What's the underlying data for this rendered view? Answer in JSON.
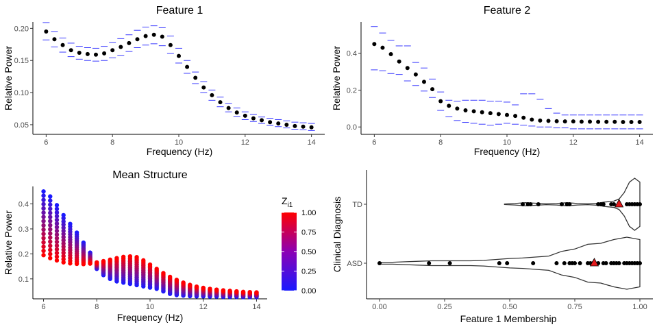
{
  "colors": {
    "dot": "#000000",
    "ci": "#3a3aff",
    "low": "#1a1aff",
    "high": "#ff0000",
    "violin": "#333333",
    "triangle": "#e31a1c"
  },
  "chart_data": [
    {
      "id": "p1",
      "type": "scatter",
      "title": "Feature 1",
      "xlabel": "Frequency (Hz)",
      "ylabel": "Relative Power",
      "xlim": [
        5.6,
        14.4
      ],
      "ylim": [
        0.035,
        0.21
      ],
      "xticks": [
        6,
        8,
        10,
        12,
        14
      ],
      "xtick_labels": [
        "6",
        "8",
        "10",
        "12",
        "14"
      ],
      "yticks": [
        0.05,
        0.1,
        0.15,
        0.2
      ],
      "ytick_labels": [
        "0.05",
        "0.10",
        "0.15",
        "0.20"
      ],
      "x": [
        6.0,
        6.25,
        6.5,
        6.75,
        7.0,
        7.25,
        7.5,
        7.75,
        8.0,
        8.25,
        8.5,
        8.75,
        9.0,
        9.25,
        9.5,
        9.75,
        10.0,
        10.25,
        10.5,
        10.75,
        11.0,
        11.25,
        11.5,
        11.75,
        12.0,
        12.25,
        12.5,
        12.75,
        13.0,
        13.25,
        13.5,
        13.75,
        14.0
      ],
      "y": [
        0.195,
        0.183,
        0.174,
        0.166,
        0.162,
        0.16,
        0.159,
        0.161,
        0.166,
        0.171,
        0.177,
        0.183,
        0.188,
        0.19,
        0.187,
        0.174,
        0.157,
        0.14,
        0.123,
        0.108,
        0.096,
        0.085,
        0.076,
        0.069,
        0.064,
        0.06,
        0.057,
        0.054,
        0.052,
        0.05,
        0.048,
        0.047,
        0.046
      ],
      "lower": [
        0.182,
        0.171,
        0.163,
        0.156,
        0.152,
        0.15,
        0.149,
        0.15,
        0.154,
        0.158,
        0.164,
        0.17,
        0.174,
        0.176,
        0.173,
        0.161,
        0.146,
        0.13,
        0.114,
        0.1,
        0.088,
        0.078,
        0.07,
        0.063,
        0.058,
        0.055,
        0.052,
        0.049,
        0.047,
        0.045,
        0.043,
        0.042,
        0.041
      ],
      "upper": [
        0.209,
        0.195,
        0.185,
        0.177,
        0.172,
        0.17,
        0.169,
        0.172,
        0.178,
        0.184,
        0.19,
        0.197,
        0.202,
        0.204,
        0.201,
        0.188,
        0.169,
        0.15,
        0.132,
        0.117,
        0.104,
        0.093,
        0.083,
        0.076,
        0.07,
        0.066,
        0.062,
        0.06,
        0.058,
        0.056,
        0.054,
        0.053,
        0.052
      ]
    },
    {
      "id": "p2",
      "type": "scatter",
      "title": "Feature 2",
      "xlabel": "Frequency (Hz)",
      "ylabel": "Relative Power",
      "xlim": [
        5.6,
        14.4
      ],
      "ylim": [
        -0.04,
        0.57
      ],
      "xticks": [
        6,
        8,
        10,
        12,
        14
      ],
      "xtick_labels": [
        "6",
        "8",
        "10",
        "12",
        "14"
      ],
      "yticks": [
        0.0,
        0.2,
        0.4
      ],
      "ytick_labels": [
        "0.0",
        "0.2",
        "0.4"
      ],
      "x": [
        6.0,
        6.25,
        6.5,
        6.75,
        7.0,
        7.25,
        7.5,
        7.75,
        8.0,
        8.25,
        8.5,
        8.75,
        9.0,
        9.25,
        9.5,
        9.75,
        10.0,
        10.25,
        10.5,
        10.75,
        11.0,
        11.25,
        11.5,
        11.75,
        12.0,
        12.25,
        12.5,
        12.75,
        13.0,
        13.25,
        13.5,
        13.75,
        14.0
      ],
      "y": [
        0.45,
        0.43,
        0.395,
        0.355,
        0.32,
        0.285,
        0.245,
        0.205,
        0.14,
        0.115,
        0.1,
        0.09,
        0.085,
        0.08,
        0.075,
        0.07,
        0.065,
        0.06,
        0.05,
        0.04,
        0.035,
        0.033,
        0.031,
        0.03,
        0.03,
        0.029,
        0.029,
        0.028,
        0.028,
        0.028,
        0.027,
        0.027,
        0.027
      ],
      "lower": [
        0.31,
        0.305,
        0.29,
        0.285,
        0.25,
        0.225,
        0.195,
        0.16,
        0.09,
        0.055,
        0.035,
        0.025,
        0.02,
        0.015,
        0.01,
        0.015,
        0.02,
        0.015,
        0.01,
        0.005,
        0.0,
        0.0,
        -0.005,
        -0.005,
        -0.01,
        -0.01,
        -0.01,
        -0.01,
        -0.01,
        -0.01,
        -0.01,
        -0.01,
        -0.01
      ],
      "upper": [
        0.545,
        0.51,
        0.47,
        0.44,
        0.44,
        0.35,
        0.32,
        0.26,
        0.19,
        0.145,
        0.14,
        0.145,
        0.145,
        0.145,
        0.14,
        0.14,
        0.135,
        0.12,
        0.18,
        0.18,
        0.15,
        0.1,
        0.075,
        0.065,
        0.065,
        0.065,
        0.065,
        0.065,
        0.065,
        0.065,
        0.065,
        0.065,
        0.065
      ]
    },
    {
      "id": "p3",
      "type": "scatter",
      "title": "Mean Structure",
      "xlabel": "Frequency (Hz)",
      "ylabel": "Relative Power",
      "xlim": [
        5.6,
        14.4
      ],
      "ylim": [
        0.02,
        0.47
      ],
      "xticks": [
        6,
        8,
        10,
        12,
        14
      ],
      "xtick_labels": [
        "6",
        "8",
        "10",
        "12",
        "14"
      ],
      "yticks": [
        0.1,
        0.2,
        0.3,
        0.4
      ],
      "ytick_labels": [
        "0.1",
        "0.2",
        "0.3",
        "0.4"
      ],
      "x": [
        6.0,
        6.25,
        6.5,
        6.75,
        7.0,
        7.25,
        7.5,
        7.75,
        8.0,
        8.25,
        8.5,
        8.75,
        9.0,
        9.25,
        9.5,
        9.75,
        10.0,
        10.25,
        10.5,
        10.75,
        11.0,
        11.25,
        11.5,
        11.75,
        12.0,
        12.25,
        12.5,
        12.75,
        13.0,
        13.25,
        13.5,
        13.75,
        14.0
      ],
      "low_end": [
        0.45,
        0.43,
        0.395,
        0.355,
        0.32,
        0.285,
        0.245,
        0.205,
        0.14,
        0.115,
        0.1,
        0.09,
        0.085,
        0.08,
        0.075,
        0.07,
        0.065,
        0.06,
        0.05,
        0.04,
        0.035,
        0.033,
        0.031,
        0.03,
        0.03,
        0.029,
        0.029,
        0.028,
        0.028,
        0.028,
        0.027,
        0.027,
        0.027
      ],
      "high_end": [
        0.195,
        0.183,
        0.174,
        0.166,
        0.162,
        0.16,
        0.159,
        0.161,
        0.166,
        0.171,
        0.177,
        0.183,
        0.188,
        0.19,
        0.187,
        0.174,
        0.157,
        0.14,
        0.123,
        0.108,
        0.096,
        0.085,
        0.076,
        0.069,
        0.064,
        0.06,
        0.057,
        0.054,
        0.052,
        0.05,
        0.048,
        0.047,
        0.046
      ],
      "legend": {
        "title": "Z",
        "title_sub": "i1",
        "ticks": [
          0.0,
          0.25,
          0.5,
          0.75,
          1.0
        ],
        "tick_labels": [
          "0.00",
          "0.25",
          "0.50",
          "0.75",
          "1.00"
        ]
      }
    },
    {
      "id": "p4",
      "type": "violin",
      "title": "",
      "xlabel": "Feature 1 Membership",
      "ylabel": "Clinical Diagnosis",
      "xlim": [
        -0.05,
        1.05
      ],
      "xticks": [
        0.0,
        0.25,
        0.5,
        0.75,
        1.0
      ],
      "xtick_labels": [
        "0.00",
        "0.25",
        "0.50",
        "0.75",
        "1.00"
      ],
      "categories": [
        "ASD",
        "TD"
      ],
      "groups": [
        {
          "name": "ASD",
          "mean": 0.825,
          "points": [
            0.0,
            0.19,
            0.27,
            0.46,
            0.49,
            0.59,
            0.68,
            0.71,
            0.73,
            0.74,
            0.75,
            0.77,
            0.8,
            0.81,
            0.82,
            0.84,
            0.86,
            0.87,
            0.89,
            0.9,
            0.91,
            0.92,
            0.94,
            0.95,
            0.96,
            0.97,
            0.98,
            0.99,
            1.0
          ],
          "density": {
            "x": [
              0.0,
              0.05,
              0.1,
              0.15,
              0.2,
              0.25,
              0.3,
              0.35,
              0.4,
              0.45,
              0.5,
              0.55,
              0.6,
              0.65,
              0.7,
              0.75,
              0.8,
              0.85,
              0.9,
              0.95,
              1.0
            ],
            "w": [
              0.02,
              0.02,
              0.03,
              0.04,
              0.05,
              0.05,
              0.05,
              0.05,
              0.06,
              0.08,
              0.1,
              0.11,
              0.13,
              0.15,
              0.25,
              0.3,
              0.4,
              0.42,
              0.5,
              0.55,
              0.5
            ]
          }
        },
        {
          "name": "TD",
          "mean": 0.92,
          "points": [
            0.55,
            0.57,
            0.58,
            0.61,
            0.7,
            0.72,
            0.73,
            0.84,
            0.85,
            0.86,
            0.89,
            0.9,
            0.92,
            0.95,
            0.96,
            0.97,
            0.98,
            0.99,
            1.0
          ],
          "density": {
            "x": [
              0.48,
              0.52,
              0.56,
              0.6,
              0.64,
              0.68,
              0.72,
              0.76,
              0.8,
              0.84,
              0.86,
              0.88,
              0.9,
              0.92,
              0.94,
              0.96,
              0.98,
              1.0
            ],
            "w": [
              0.01,
              0.03,
              0.06,
              0.04,
              0.015,
              0.03,
              0.06,
              0.03,
              0.015,
              0.04,
              0.08,
              0.1,
              0.12,
              0.2,
              0.45,
              0.85,
              1.0,
              0.85
            ]
          }
        }
      ]
    }
  ]
}
